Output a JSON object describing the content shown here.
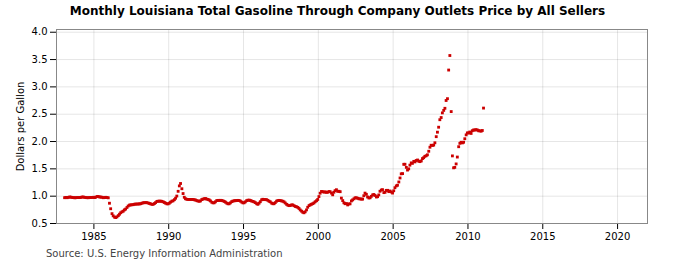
{
  "chart_data": {
    "type": "scatter",
    "title": "Monthly Louisiana Total Gasoline Through Company Outlets Price by All Sellers",
    "ylabel": "Dollars per Gallon",
    "source": "Source: U.S. Energy Information Administration",
    "color": "#cc0000",
    "marker": "square",
    "grid": true,
    "xlim": [
      1982.5,
      2022
    ],
    "ylim": [
      0.5,
      4.05
    ],
    "xticks": [
      1985,
      1990,
      1995,
      2000,
      2005,
      2010,
      2015,
      2020
    ],
    "yticks": [
      0.5,
      {
        "value": 1.0,
        "label": "1.0"
      },
      1.5,
      {
        "value": 2.0,
        "label": "2.0"
      },
      2.5,
      {
        "value": 3.0,
        "label": "3.0"
      },
      3.5,
      {
        "value": 4.0,
        "label": "4.0"
      }
    ],
    "x": [
      1983.04,
      1983.12,
      1983.21,
      1983.29,
      1983.38,
      1983.46,
      1983.54,
      1983.63,
      1983.71,
      1983.79,
      1983.88,
      1983.96,
      1984.04,
      1984.12,
      1984.21,
      1984.29,
      1984.38,
      1984.46,
      1984.54,
      1984.63,
      1984.71,
      1984.79,
      1984.88,
      1984.96,
      1985.04,
      1985.12,
      1985.21,
      1985.29,
      1985.38,
      1985.46,
      1985.54,
      1985.63,
      1985.71,
      1985.79,
      1985.88,
      1985.96,
      1986.04,
      1986.12,
      1986.21,
      1986.29,
      1986.38,
      1986.46,
      1986.54,
      1986.63,
      1986.71,
      1986.79,
      1986.88,
      1986.96,
      1987.04,
      1987.12,
      1987.21,
      1987.29,
      1987.38,
      1987.46,
      1987.54,
      1987.63,
      1987.71,
      1987.79,
      1987.88,
      1987.96,
      1988.04,
      1988.12,
      1988.21,
      1988.29,
      1988.38,
      1988.46,
      1988.54,
      1988.63,
      1988.71,
      1988.79,
      1988.88,
      1988.96,
      1989.04,
      1989.12,
      1989.21,
      1989.29,
      1989.38,
      1989.46,
      1989.54,
      1989.63,
      1989.71,
      1989.79,
      1989.88,
      1989.96,
      1990.04,
      1990.12,
      1990.21,
      1990.29,
      1990.38,
      1990.46,
      1990.54,
      1990.63,
      1990.71,
      1990.79,
      1990.88,
      1990.96,
      1991.04,
      1991.12,
      1991.21,
      1991.29,
      1991.38,
      1991.46,
      1991.54,
      1991.63,
      1991.71,
      1991.79,
      1991.88,
      1991.96,
      1992.04,
      1992.12,
      1992.21,
      1992.29,
      1992.38,
      1992.46,
      1992.54,
      1992.63,
      1992.71,
      1992.79,
      1992.88,
      1992.96,
      1993.04,
      1993.12,
      1993.21,
      1993.29,
      1993.38,
      1993.46,
      1993.54,
      1993.63,
      1993.71,
      1993.79,
      1993.88,
      1993.96,
      1994.04,
      1994.12,
      1994.21,
      1994.29,
      1994.38,
      1994.46,
      1994.54,
      1994.63,
      1994.71,
      1994.79,
      1994.88,
      1994.96,
      1995.04,
      1995.12,
      1995.21,
      1995.29,
      1995.38,
      1995.46,
      1995.54,
      1995.63,
      1995.71,
      1995.79,
      1995.88,
      1995.96,
      1996.04,
      1996.12,
      1996.21,
      1996.29,
      1996.38,
      1996.46,
      1996.54,
      1996.63,
      1996.71,
      1996.79,
      1996.88,
      1996.96,
      1997.04,
      1997.12,
      1997.21,
      1997.29,
      1997.38,
      1997.46,
      1997.54,
      1997.63,
      1997.71,
      1997.79,
      1997.88,
      1997.96,
      1998.04,
      1998.12,
      1998.21,
      1998.29,
      1998.38,
      1998.46,
      1998.54,
      1998.63,
      1998.71,
      1998.79,
      1998.88,
      1998.96,
      1999.04,
      1999.12,
      1999.21,
      1999.29,
      1999.38,
      1999.46,
      1999.54,
      1999.63,
      1999.71,
      1999.79,
      1999.88,
      1999.96,
      2000.04,
      2000.12,
      2000.21,
      2000.29,
      2000.38,
      2000.46,
      2000.54,
      2000.63,
      2000.71,
      2000.79,
      2000.88,
      2000.96,
      2001.04,
      2001.12,
      2001.21,
      2001.29,
      2001.38,
      2001.46,
      2001.54,
      2001.63,
      2001.71,
      2001.79,
      2001.88,
      2001.96,
      2002.04,
      2002.12,
      2002.21,
      2002.29,
      2002.38,
      2002.46,
      2002.54,
      2002.63,
      2002.71,
      2002.79,
      2002.88,
      2002.96,
      2003.04,
      2003.12,
      2003.21,
      2003.29,
      2003.38,
      2003.46,
      2003.54,
      2003.63,
      2003.71,
      2003.79,
      2003.88,
      2003.96,
      2004.04,
      2004.12,
      2004.21,
      2004.29,
      2004.38,
      2004.46,
      2004.54,
      2004.63,
      2004.71,
      2004.79,
      2004.88,
      2004.96,
      2005.04,
      2005.12,
      2005.21,
      2005.29,
      2005.38,
      2005.46,
      2005.54,
      2005.63,
      2005.71,
      2005.79,
      2005.88,
      2005.96,
      2006.04,
      2006.12,
      2006.21,
      2006.29,
      2006.38,
      2006.46,
      2006.54,
      2006.63,
      2006.71,
      2006.79,
      2006.88,
      2006.96,
      2007.04,
      2007.12,
      2007.21,
      2007.29,
      2007.38,
      2007.46,
      2007.54,
      2007.63,
      2007.71,
      2007.79,
      2007.88,
      2007.96,
      2008.04,
      2008.12,
      2008.21,
      2008.29,
      2008.38,
      2008.46,
      2008.54,
      2008.63,
      2008.71,
      2008.79,
      2008.88,
      2008.96,
      2009.04,
      2009.12,
      2009.21,
      2009.29,
      2009.38,
      2009.46,
      2009.54,
      2009.63,
      2009.71,
      2009.79,
      2009.88,
      2009.96,
      2010.04,
      2010.12,
      2010.21,
      2010.29,
      2010.38,
      2010.46,
      2010.54,
      2010.63,
      2010.71,
      2010.79,
      2010.88,
      2010.96,
      2011.04
    ],
    "values": [
      0.972,
      0.977,
      0.972,
      0.978,
      0.985,
      0.982,
      0.977,
      0.974,
      0.971,
      0.972,
      0.974,
      0.974,
      0.975,
      0.978,
      0.984,
      0.985,
      0.978,
      0.975,
      0.972,
      0.972,
      0.974,
      0.976,
      0.977,
      0.979,
      0.974,
      0.981,
      0.994,
      0.994,
      0.985,
      0.984,
      0.98,
      0.972,
      0.974,
      0.979,
      0.975,
      0.97,
      0.871,
      0.77,
      0.68,
      0.64,
      0.616,
      0.608,
      0.622,
      0.644,
      0.67,
      0.697,
      0.714,
      0.726,
      0.749,
      0.764,
      0.793,
      0.82,
      0.837,
      0.84,
      0.843,
      0.845,
      0.852,
      0.856,
      0.855,
      0.858,
      0.858,
      0.862,
      0.871,
      0.879,
      0.881,
      0.882,
      0.881,
      0.875,
      0.868,
      0.859,
      0.851,
      0.851,
      0.864,
      0.882,
      0.904,
      0.908,
      0.909,
      0.908,
      0.906,
      0.897,
      0.885,
      0.872,
      0.86,
      0.86,
      0.872,
      0.891,
      0.908,
      0.915,
      0.936,
      0.963,
      1.002,
      1.089,
      1.188,
      1.232,
      1.136,
      1.048,
      0.98,
      0.953,
      0.943,
      0.941,
      0.94,
      0.941,
      0.941,
      0.939,
      0.934,
      0.93,
      0.918,
      0.912,
      0.907,
      0.913,
      0.938,
      0.947,
      0.953,
      0.957,
      0.946,
      0.94,
      0.93,
      0.913,
      0.889,
      0.878,
      0.879,
      0.897,
      0.919,
      0.923,
      0.923,
      0.924,
      0.92,
      0.915,
      0.904,
      0.891,
      0.873,
      0.861,
      0.861,
      0.878,
      0.9,
      0.91,
      0.916,
      0.918,
      0.921,
      0.923,
      0.92,
      0.91,
      0.892,
      0.878,
      0.879,
      0.896,
      0.918,
      0.926,
      0.928,
      0.921,
      0.911,
      0.904,
      0.895,
      0.882,
      0.862,
      0.851,
      0.872,
      0.899,
      0.934,
      0.943,
      0.937,
      0.938,
      0.935,
      0.924,
      0.907,
      0.896,
      0.873,
      0.862,
      0.862,
      0.882,
      0.909,
      0.919,
      0.923,
      0.919,
      0.913,
      0.908,
      0.895,
      0.875,
      0.851,
      0.836,
      0.827,
      0.829,
      0.84,
      0.84,
      0.826,
      0.812,
      0.806,
      0.795,
      0.775,
      0.748,
      0.726,
      0.706,
      0.696,
      0.714,
      0.749,
      0.797,
      0.828,
      0.841,
      0.852,
      0.863,
      0.877,
      0.898,
      0.917,
      0.94,
      0.993,
      1.054,
      1.086,
      1.082,
      1.074,
      1.079,
      1.07,
      1.072,
      1.085,
      1.082,
      1.056,
      1.025,
      1.072,
      1.101,
      1.118,
      1.089,
      1.089,
      1.082,
      0.965,
      0.919,
      0.879,
      0.862,
      0.865,
      0.84,
      0.858,
      0.86,
      0.913,
      0.932,
      0.952,
      0.97,
      0.971,
      0.962,
      0.953,
      0.95,
      0.947,
      0.946,
      1.008,
      1.056,
      1.034,
      0.985,
      0.967,
      0.971,
      0.997,
      1.023,
      1.031,
      1.013,
      0.985,
      0.991,
      1.023,
      1.09,
      1.112,
      1.119,
      1.065,
      1.072,
      1.106,
      1.107,
      1.083,
      1.095,
      1.077,
      1.057,
      1.099,
      1.155,
      1.188,
      1.2,
      1.26,
      1.333,
      1.409,
      1.413,
      1.583,
      1.584,
      1.527,
      1.478,
      1.5,
      1.568,
      1.609,
      1.601,
      1.637,
      1.627,
      1.653,
      1.662,
      1.64,
      1.632,
      1.644,
      1.688,
      1.704,
      1.729,
      1.74,
      1.757,
      1.822,
      1.896,
      1.932,
      1.929,
      1.935,
      1.977,
      2.089,
      2.171,
      2.262,
      2.399,
      2.439,
      2.524,
      2.57,
      2.608,
      2.751,
      2.784,
      3.308,
      3.574,
      2.548,
      1.737,
      1.519,
      1.527,
      1.59,
      1.716,
      1.905,
      1.967,
      1.987,
      1.975,
      1.987,
      2.051,
      2.122,
      2.158,
      2.156,
      2.174,
      2.148,
      2.198,
      2.212,
      2.209,
      2.218,
      2.211,
      2.197,
      2.196,
      2.189,
      2.202,
      2.612
    ]
  }
}
